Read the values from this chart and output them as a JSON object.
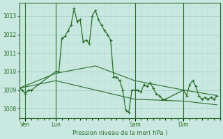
{
  "background_color": "#c8e8e0",
  "plot_bg_color": "#c8e8e0",
  "grid_color_major": "#a0ccc0",
  "grid_color_minor": "#b8dcd8",
  "line_color": "#2d6e2d",
  "xlabel": "Pression niveau de la mer( hPa )",
  "ylim": [
    1007.5,
    1013.7
  ],
  "yticks": [
    1008,
    1009,
    1010,
    1011,
    1012,
    1013
  ],
  "day_labels": [
    "Ven",
    "Lun",
    "Sam",
    "Dim"
  ],
  "day_positions": [
    2,
    12,
    38,
    54
  ],
  "xlim": [
    0,
    66
  ],
  "series1_x": [
    0,
    1,
    2,
    3,
    4,
    12,
    13,
    14,
    15,
    16,
    17,
    18,
    19,
    20,
    21,
    22,
    23,
    24,
    25,
    26,
    27,
    28,
    29,
    30,
    31,
    32,
    33,
    34,
    35,
    36,
    37,
    38,
    39,
    40,
    41,
    42,
    43,
    44,
    45,
    46,
    47,
    48,
    54,
    55,
    56,
    57,
    58,
    59,
    60,
    61,
    62,
    63,
    64,
    65
  ],
  "series1_y": [
    1009.1,
    1009.0,
    1008.8,
    1009.0,
    1009.0,
    1010.0,
    1010.0,
    1011.8,
    1011.9,
    1012.2,
    1012.5,
    1013.4,
    1012.7,
    1012.8,
    1011.6,
    1011.7,
    1011.5,
    1013.0,
    1013.3,
    1012.8,
    1012.5,
    1012.2,
    1012.0,
    1011.7,
    1009.7,
    1009.7,
    1009.5,
    1009.0,
    1007.9,
    1007.8,
    1009.0,
    1009.0,
    1009.0,
    1008.9,
    1009.3,
    1009.2,
    1009.4,
    1009.1,
    1008.8,
    1008.7,
    1008.5,
    1008.5,
    1009.0,
    1008.7,
    1009.3,
    1009.5,
    1009.2,
    1008.7,
    1008.5,
    1008.6,
    1008.5,
    1008.6,
    1008.5,
    1008.7
  ],
  "series2_x": [
    0,
    12,
    25,
    38,
    54,
    65
  ],
  "series2_y": [
    1009.1,
    1009.9,
    1010.3,
    1009.5,
    1009.0,
    1008.7
  ],
  "series3_x": [
    0,
    12,
    25,
    38,
    54,
    65
  ],
  "series3_y": [
    1009.1,
    1009.5,
    1009.0,
    1008.5,
    1008.4,
    1008.2
  ]
}
